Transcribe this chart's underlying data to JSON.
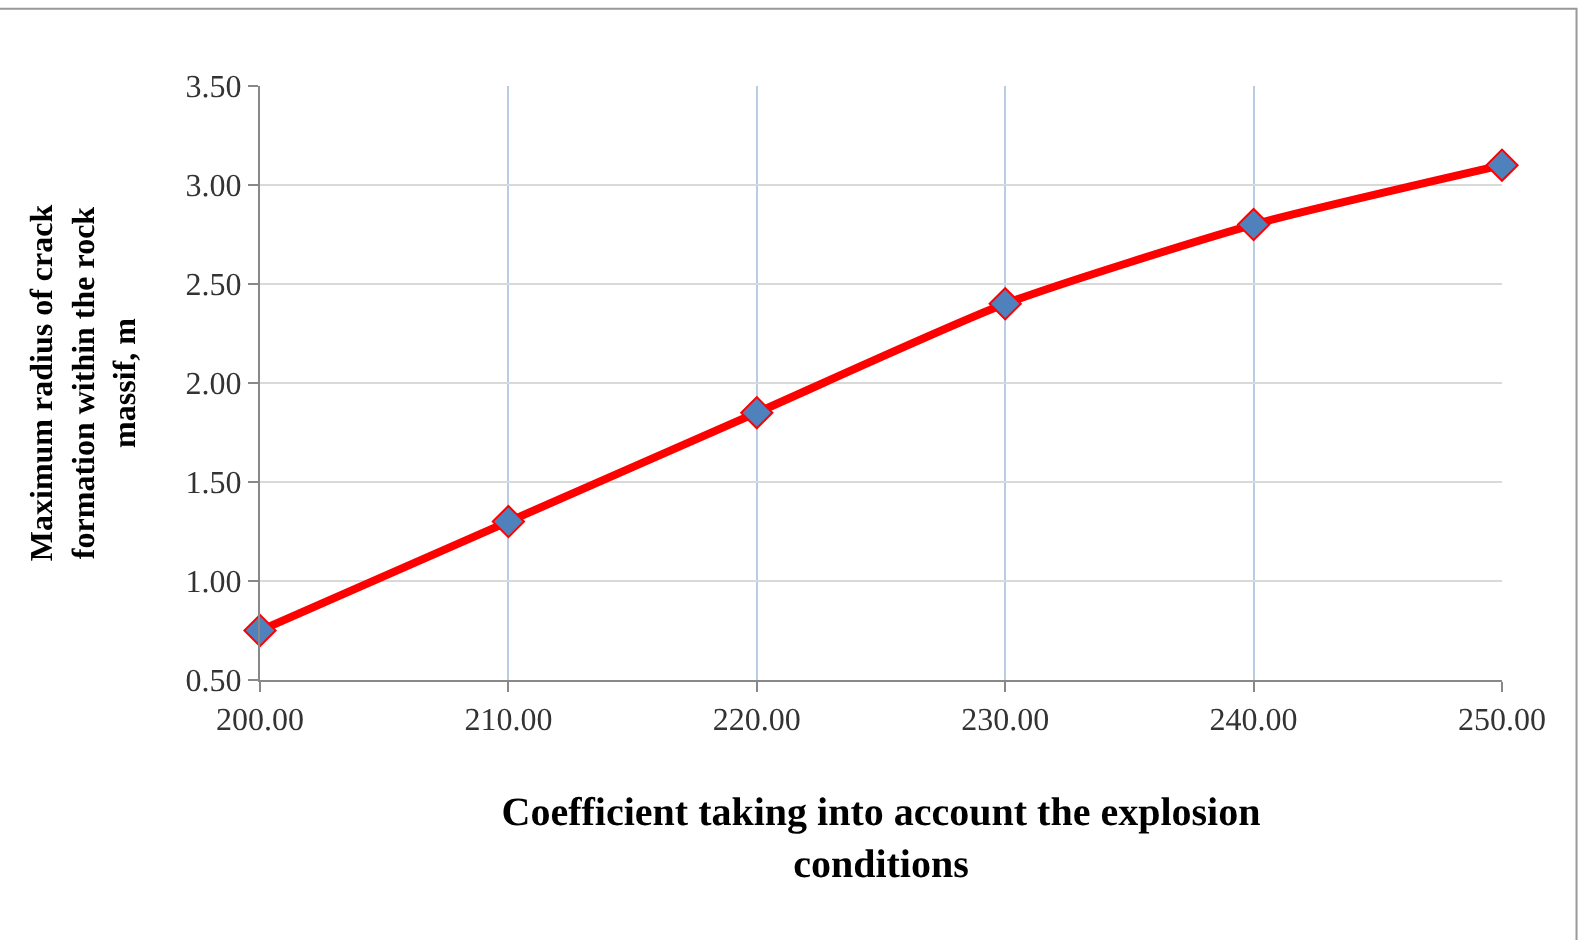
{
  "chart_data": {
    "type": "line",
    "xlabel": "Coefficient taking into account the explosion conditions",
    "ylabel": "Maximum radius of crack formation within the rock massif, m",
    "x": [
      200,
      210,
      220,
      230,
      240,
      250
    ],
    "series": [
      {
        "color": "#ff0000",
        "values": [
          0.75,
          1.3,
          1.85,
          2.4,
          2.8,
          3.1
        ]
      }
    ],
    "xlim": [
      200,
      250
    ],
    "ylim": [
      0.5,
      3.5
    ],
    "xticks": [
      {
        "value": 200,
        "label": "200.00"
      },
      {
        "value": 210,
        "label": "210.00"
      },
      {
        "value": 220,
        "label": "220.00"
      },
      {
        "value": 230,
        "label": "230.00"
      },
      {
        "value": 240,
        "label": "240.00"
      },
      {
        "value": 250,
        "label": "250.00"
      }
    ],
    "yticks": [
      {
        "value": 0.5,
        "label": "0.50"
      },
      {
        "value": 1.0,
        "label": "1.00"
      },
      {
        "value": 1.5,
        "label": "1.50"
      },
      {
        "value": 2.0,
        "label": "2.00"
      },
      {
        "value": 2.5,
        "label": "2.50"
      },
      {
        "value": 3.0,
        "label": "3.00"
      },
      {
        "value": 3.5,
        "label": "3.50"
      }
    ],
    "grid": true,
    "marker": "diamond",
    "line_style": "solid",
    "legend": false
  }
}
